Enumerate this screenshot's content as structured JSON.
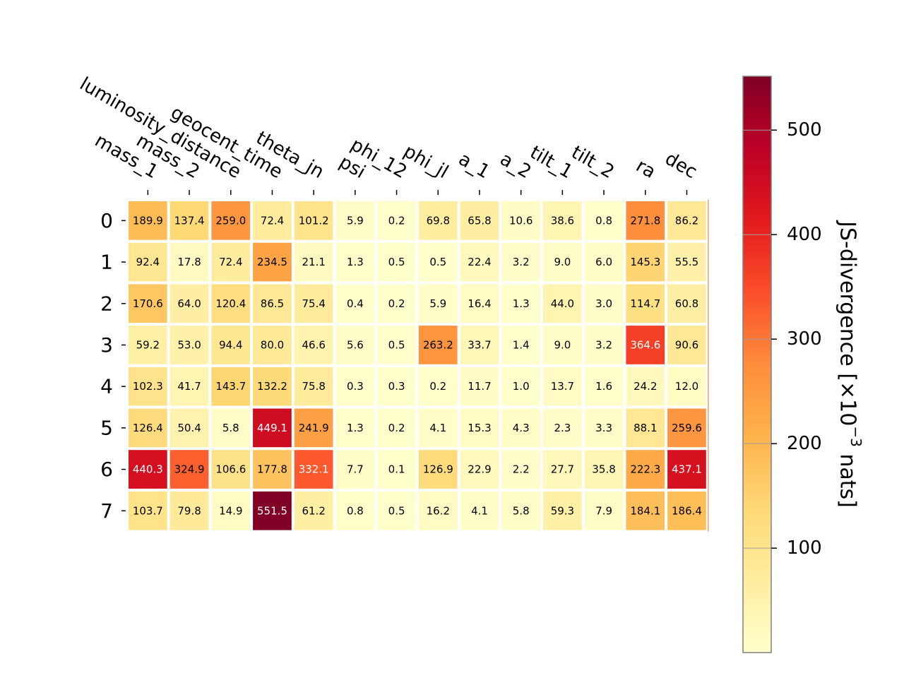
{
  "chart_data": {
    "type": "heatmap",
    "rows": [
      "0",
      "1",
      "2",
      "3",
      "4",
      "5",
      "6",
      "7"
    ],
    "columns": [
      "mass_1",
      "mass_2",
      "luminosity_distance",
      "geocent_time",
      "theta_jn",
      "psi",
      "phi_12",
      "phi_jl",
      "a_1",
      "a_2",
      "tilt_1",
      "tilt_2",
      "ra",
      "dec"
    ],
    "values": [
      [
        189.9,
        137.4,
        259.0,
        72.4,
        101.2,
        5.9,
        0.2,
        69.8,
        65.8,
        10.6,
        38.6,
        0.8,
        271.8,
        86.2
      ],
      [
        92.4,
        17.8,
        72.4,
        234.5,
        21.1,
        1.3,
        0.5,
        0.5,
        22.4,
        3.2,
        9.0,
        6.0,
        145.3,
        55.5
      ],
      [
        170.6,
        64.0,
        120.4,
        86.5,
        75.4,
        0.4,
        0.2,
        5.9,
        16.4,
        1.3,
        44.0,
        3.0,
        114.7,
        60.8
      ],
      [
        59.2,
        53.0,
        94.4,
        80.0,
        46.6,
        5.6,
        0.5,
        263.2,
        33.7,
        1.4,
        9.0,
        3.2,
        364.6,
        90.6
      ],
      [
        102.3,
        41.7,
        143.7,
        132.2,
        75.8,
        0.3,
        0.3,
        0.2,
        11.7,
        1.0,
        13.7,
        1.6,
        24.2,
        12.0
      ],
      [
        126.4,
        50.4,
        5.8,
        449.1,
        241.9,
        1.3,
        0.2,
        4.1,
        15.3,
        4.3,
        2.3,
        3.3,
        88.1,
        259.6
      ],
      [
        440.3,
        324.9,
        106.6,
        177.8,
        332.1,
        7.7,
        0.1,
        126.9,
        22.9,
        2.2,
        27.7,
        35.8,
        222.3,
        437.1
      ],
      [
        103.7,
        79.8,
        14.9,
        551.5,
        61.2,
        0.8,
        0.5,
        16.2,
        4.1,
        5.8,
        59.3,
        7.9,
        184.1,
        186.4
      ]
    ],
    "colorbar": {
      "label": "JS-divergence [×10⁻³ nats]",
      "ticks": [
        100,
        200,
        300,
        400,
        500
      ],
      "range": [
        0.1,
        551.5
      ],
      "colormap": "YlOrRd"
    }
  }
}
